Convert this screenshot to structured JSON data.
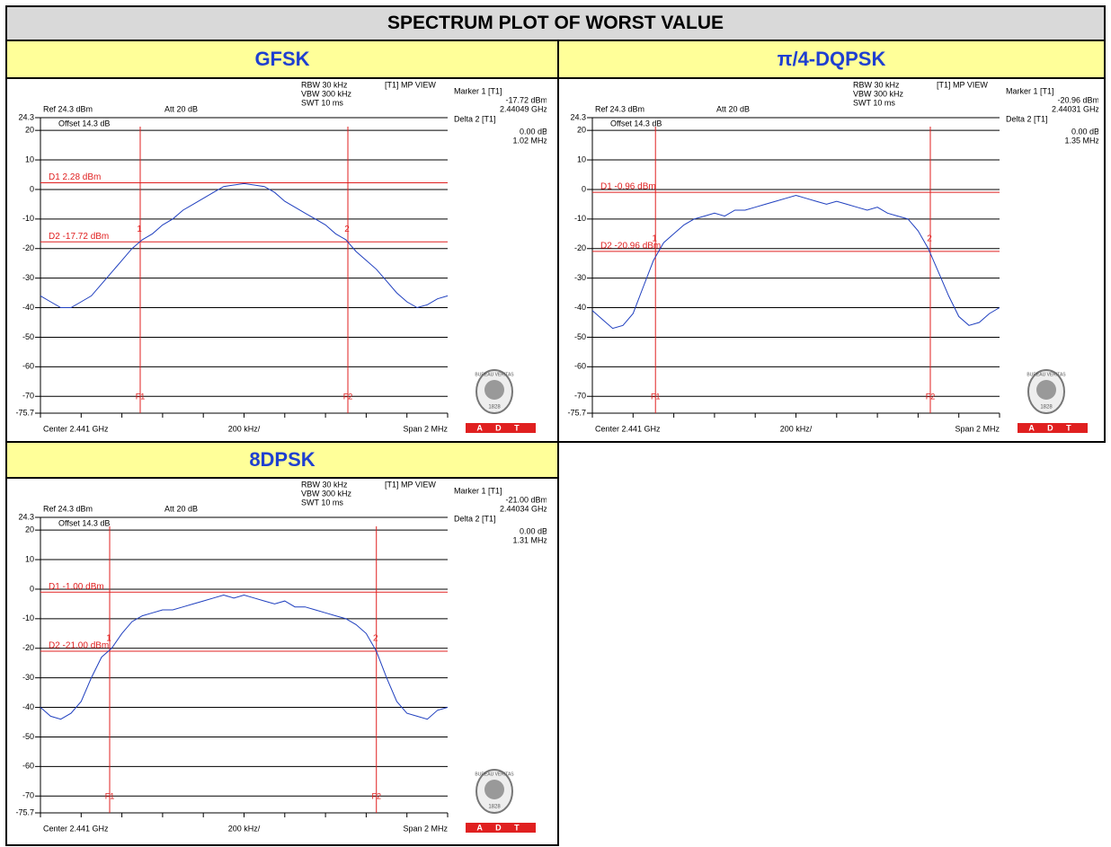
{
  "title": "SPECTRUM PLOT OF WORST VALUE",
  "logo": {
    "name": "BUREAU VERITAS",
    "year": "1828",
    "brand": "A D T"
  },
  "chart_data": [
    {
      "type": "line",
      "title": "GFSK",
      "color": "#1f3fbf",
      "ylim": [
        -75.7,
        24.3
      ],
      "yticks": [
        24.3,
        20,
        10,
        0,
        -10,
        -20,
        -30,
        -40,
        -50,
        -60,
        -70,
        -75.7
      ],
      "xlim": [
        2.44,
        2.442
      ],
      "values": [
        -36,
        -38,
        -40,
        -40,
        -38,
        -36,
        -32,
        -28,
        -24,
        -20,
        -17,
        -15,
        -12,
        -10,
        -7,
        -5,
        -3,
        -1,
        1,
        1.5,
        2,
        1.5,
        1,
        -1,
        -4,
        -6,
        -8,
        -10,
        -12,
        -15,
        -17,
        -21,
        -24,
        -27,
        -31,
        -35,
        -38,
        -40,
        -39,
        -37,
        -36
      ],
      "ref_label": "Ref 24.3 dBm",
      "offset_label": "Offset 14.3 dB",
      "att_label": "Att 20 dB",
      "settings": [
        "RBW 30 kHz",
        "VBW 300 kHz",
        "SWT 10 ms"
      ],
      "view_label": "[T1] MP VIEW",
      "marker_info": [
        "Marker 1 [T1]",
        "-17.72 dBm",
        "2.44049 GHz",
        "Delta 2 [T1]",
        "0.00 dB",
        "1.02 MHz"
      ],
      "line_color": "#e02020",
      "display_lines": [
        {
          "label": "D1 2.28 dBm",
          "value": 2.28
        },
        {
          "label": "D2 -17.72 dBm",
          "value": -17.72
        }
      ],
      "frequency_lines": [
        {
          "label": "F1",
          "value": 2.44049
        },
        {
          "label": "F2",
          "value": 2.44151
        }
      ],
      "markers": [
        {
          "label": "1",
          "x": 2.44049,
          "y": -17.72
        },
        {
          "label": "2",
          "x": 2.44151,
          "y": -17.72
        }
      ],
      "x_labels": [
        "Center 2.441 GHz",
        "200 kHz/",
        "Span 2 MHz"
      ]
    },
    {
      "type": "line",
      "title": "π/4-DQPSK",
      "color": "#1f3fbf",
      "ylim": [
        -75.7,
        24.3
      ],
      "yticks": [
        24.3,
        20,
        10,
        0,
        -10,
        -20,
        -30,
        -40,
        -50,
        -60,
        -70,
        -75.7
      ],
      "xlim": [
        2.44,
        2.442
      ],
      "values": [
        -41,
        -44,
        -47,
        -46,
        -42,
        -33,
        -24,
        -18,
        -15,
        -12,
        -10,
        -9,
        -8,
        -9,
        -7,
        -7,
        -6,
        -5,
        -4,
        -3,
        -2,
        -3,
        -4,
        -5,
        -4,
        -5,
        -6,
        -7,
        -6,
        -8,
        -9,
        -10,
        -14,
        -20,
        -28,
        -36,
        -43,
        -46,
        -45,
        -42,
        -40
      ],
      "ref_label": "Ref 24.3 dBm",
      "offset_label": "Offset 14.3 dB",
      "att_label": "Att 20 dB",
      "settings": [
        "RBW 30 kHz",
        "VBW 300 kHz",
        "SWT 10 ms"
      ],
      "view_label": "[T1] MP VIEW",
      "marker_info": [
        "Marker 1 [T1]",
        "-20.96 dBm",
        "2.44031 GHz",
        "Delta 2 [T1]",
        "0.00 dB",
        "1.35 MHz"
      ],
      "line_color": "#e02020",
      "display_lines": [
        {
          "label": "D1 -0.96 dBm",
          "value": -0.96
        },
        {
          "label": "D2 -20.96 dBm",
          "value": -20.96
        }
      ],
      "frequency_lines": [
        {
          "label": "F1",
          "value": 2.44031
        },
        {
          "label": "F2",
          "value": 2.44166
        }
      ],
      "markers": [
        {
          "label": "1",
          "x": 2.44031,
          "y": -20.96
        },
        {
          "label": "2",
          "x": 2.44166,
          "y": -20.96
        }
      ],
      "x_labels": [
        "Center 2.441 GHz",
        "200 kHz/",
        "Span 2 MHz"
      ]
    },
    {
      "type": "line",
      "title": "8DPSK",
      "color": "#1f3fbf",
      "ylim": [
        -75.7,
        24.3
      ],
      "yticks": [
        24.3,
        20,
        10,
        0,
        -10,
        -20,
        -30,
        -40,
        -50,
        -60,
        -70,
        -75.7
      ],
      "xlim": [
        2.44,
        2.442
      ],
      "values": [
        -40,
        -43,
        -44,
        -42,
        -38,
        -30,
        -23,
        -20,
        -15,
        -11,
        -9,
        -8,
        -7,
        -7,
        -6,
        -5,
        -4,
        -3,
        -2,
        -3,
        -2,
        -3,
        -4,
        -5,
        -4,
        -6,
        -6,
        -7,
        -8,
        -9,
        -10,
        -12,
        -15,
        -21,
        -30,
        -38,
        -42,
        -43,
        -44,
        -41,
        -40
      ],
      "ref_label": "Ref 24.3 dBm",
      "offset_label": "Offset 14.3 dB",
      "att_label": "Att 20 dB",
      "settings": [
        "RBW 30 kHz",
        "VBW 300 kHz",
        "SWT 10 ms"
      ],
      "view_label": "[T1] MP VIEW",
      "marker_info": [
        "Marker 1 [T1]",
        "-21.00 dBm",
        "2.44034 GHz",
        "Delta 2 [T1]",
        "0.00 dB",
        "1.31 MHz"
      ],
      "line_color": "#e02020",
      "display_lines": [
        {
          "label": "D1 -1.00 dBm",
          "value": -1.0
        },
        {
          "label": "D2 -21.00 dBm",
          "value": -21.0
        }
      ],
      "frequency_lines": [
        {
          "label": "F1",
          "value": 2.44034
        },
        {
          "label": "F2",
          "value": 2.44165
        }
      ],
      "markers": [
        {
          "label": "1",
          "x": 2.44034,
          "y": -21.0
        },
        {
          "label": "2",
          "x": 2.44165,
          "y": -21.0
        }
      ],
      "x_labels": [
        "Center 2.441 GHz",
        "200 kHz/",
        "Span 2 MHz"
      ]
    }
  ]
}
